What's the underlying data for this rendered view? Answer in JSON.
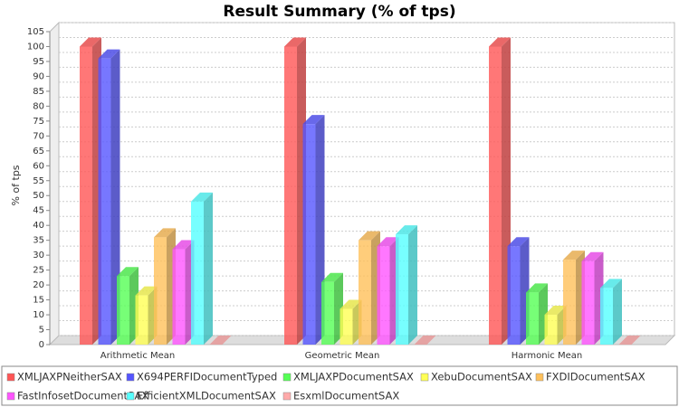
{
  "chart_data": {
    "type": "bar3d",
    "title": "Result Summary (% of tps)",
    "y_label": "% of tps",
    "categories": [
      "Arithmetic Mean",
      "Geometric Mean",
      "Harmonic Mean"
    ],
    "series": [
      {
        "name": "XMLJAXPNeitherSAX",
        "color": "#ff5555",
        "values": [
          100,
          100,
          100
        ]
      },
      {
        "name": "X694PERFIDocumentTyped",
        "color": "#5555ff",
        "values": [
          96,
          74,
          33
        ]
      },
      {
        "name": "XMLJAXPDocumentSAX",
        "color": "#55ff55",
        "values": [
          23,
          21,
          17.5
        ]
      },
      {
        "name": "XebuDocumentSAX",
        "color": "#ffff55",
        "values": [
          16.5,
          12,
          10
        ]
      },
      {
        "name": "FXDIDocumentSAX",
        "color": "#ffc05a",
        "values": [
          36,
          35,
          28.5
        ]
      },
      {
        "name": "FastInfosetDocumentSAX",
        "color": "#ff55ff",
        "values": [
          32,
          33,
          28
        ]
      },
      {
        "name": "EfficientXMLDocumentSAX",
        "color": "#55ffff",
        "values": [
          48,
          37,
          19
        ]
      },
      {
        "name": "EsxmlDocumentSAX",
        "color": "#ffaaaa",
        "values": [
          0,
          0,
          0
        ]
      }
    ],
    "ylim": [
      0,
      105
    ],
    "yticks": [
      0,
      5,
      10,
      15,
      20,
      25,
      30,
      35,
      40,
      45,
      50,
      55,
      60,
      65,
      70,
      75,
      80,
      85,
      90,
      95,
      100,
      105
    ],
    "grid": true
  }
}
